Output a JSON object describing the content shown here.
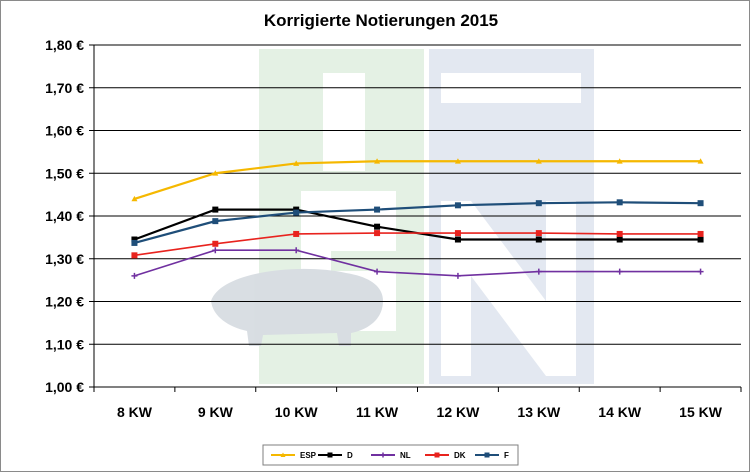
{
  "chart_data": {
    "type": "line",
    "title": "Korrigierte Notierungen 2015",
    "categories": [
      "8 KW",
      "9 KW",
      "10 KW",
      "11 KW",
      "12 KW",
      "13 KW",
      "14 KW",
      "15 KW"
    ],
    "ylim": [
      1.0,
      1.8
    ],
    "yticks": [
      "1,00 €",
      "1,10 €",
      "1,20 €",
      "1,30 €",
      "1,40 €",
      "1,50 €",
      "1,60 €",
      "1,70 €",
      "1,80 €"
    ],
    "grid": true,
    "legend_position": "bottom",
    "series": [
      {
        "name": "ESP",
        "color": "#F5B800",
        "marker": "triangle",
        "values": [
          1.44,
          1.5,
          1.523,
          1.528,
          1.528,
          1.528,
          1.528,
          1.528
        ]
      },
      {
        "name": "D",
        "color": "#000000",
        "marker": "square",
        "values": [
          1.345,
          1.415,
          1.415,
          1.375,
          1.345,
          1.345,
          1.345,
          1.345
        ]
      },
      {
        "name": "NL",
        "color": "#7030A0",
        "marker": "cross",
        "values": [
          1.26,
          1.32,
          1.32,
          1.27,
          1.26,
          1.27,
          1.27,
          1.27
        ]
      },
      {
        "name": "DK",
        "color": "#E8231E",
        "marker": "square",
        "values": [
          1.308,
          1.335,
          1.358,
          1.36,
          1.36,
          1.36,
          1.358,
          1.358
        ]
      },
      {
        "name": "F",
        "color": "#1F4E79",
        "marker": "square",
        "values": [
          1.337,
          1.388,
          1.408,
          1.415,
          1.425,
          1.43,
          1.432,
          1.43
        ]
      }
    ]
  }
}
